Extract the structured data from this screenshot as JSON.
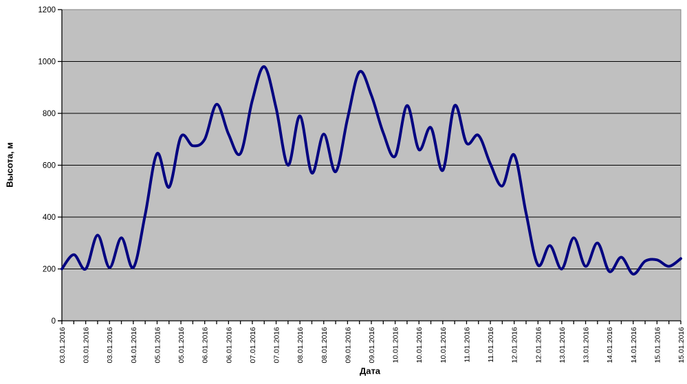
{
  "chart_data": {
    "type": "line",
    "smooth": true,
    "title": "",
    "xlabel": "Дата",
    "ylabel": "Высота, м",
    "ylim": [
      0,
      1200
    ],
    "grid": "horizontal",
    "legend": "none",
    "y_ticks": [
      0,
      200,
      400,
      600,
      800,
      1000,
      1200
    ],
    "ticks_per_label": 2,
    "x_tick_labels": [
      "03.01.2016",
      "03.01.2016",
      "03.01.2016",
      "04.01.2016",
      "05.01.2016",
      "05.01.2016",
      "06.01.2016",
      "06.01.2016",
      "07.01.2016",
      "07.01.2016",
      "08.01.2016",
      "08.01.2016",
      "09.01.2016",
      "09.01.2016",
      "10.01.2016",
      "10.01.2016",
      "10.01.2016",
      "11.01.2016",
      "11.01.2016",
      "12.01.2016",
      "12.01.2016",
      "13.01.2016",
      "13.01.2016",
      "14.01.2016",
      "14.01.2016",
      "15.01.2016",
      "15.01.2016"
    ],
    "series": [
      {
        "name": "Высота, м",
        "values": [
          200,
          255,
          200,
          330,
          205,
          320,
          205,
          410,
          645,
          515,
          710,
          675,
          700,
          835,
          720,
          645,
          850,
          980,
          820,
          600,
          790,
          570,
          720,
          575,
          780,
          960,
          870,
          725,
          635,
          830,
          660,
          745,
          580,
          830,
          685,
          715,
          605,
          520,
          640,
          415,
          215,
          290,
          200,
          320,
          210,
          300,
          190,
          245,
          180,
          230,
          235,
          210,
          240
        ]
      }
    ],
    "colors": {
      "line": "#000080",
      "plot_background": "#c0c0c0",
      "page_background": "#ffffff",
      "gridline": "#000000",
      "axis": "#000000",
      "plot_border": "#808080",
      "text": "#000000"
    }
  }
}
